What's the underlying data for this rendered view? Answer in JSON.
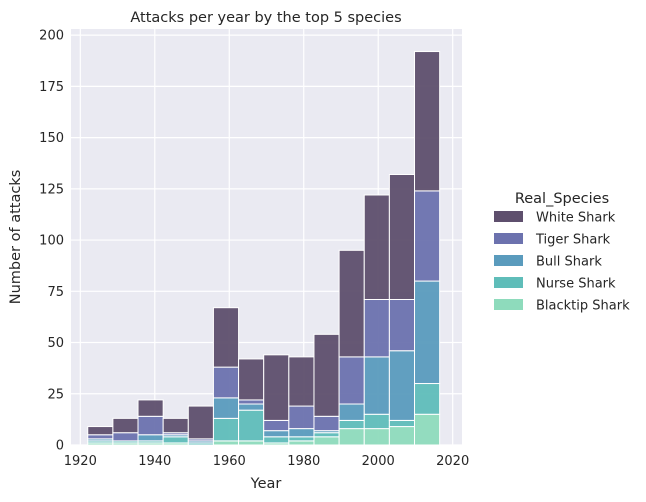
{
  "chart_data": {
    "type": "bar",
    "stacked": true,
    "title": "Attacks per year by the top 5 species",
    "xlabel": "Year",
    "ylabel": "Number of attacks",
    "xlim": [
      1917.5,
      2022.5
    ],
    "ylim": [
      0,
      203
    ],
    "xticks": [
      1920,
      1940,
      1960,
      1980,
      2000,
      2020
    ],
    "yticks": [
      0,
      25,
      50,
      75,
      100,
      125,
      150,
      175,
      200
    ],
    "grid": true,
    "legend": {
      "title": "Real_Species",
      "position": "right"
    },
    "bins": [
      [
        1922,
        1928.75
      ],
      [
        1928.75,
        1935.5
      ],
      [
        1935.5,
        1942.25
      ],
      [
        1942.25,
        1949
      ],
      [
        1949,
        1955.75
      ],
      [
        1955.75,
        1962.5
      ],
      [
        1962.5,
        1969.25
      ],
      [
        1969.25,
        1976
      ],
      [
        1976,
        1982.75
      ],
      [
        1982.75,
        1989.5
      ],
      [
        1989.5,
        1996.25
      ],
      [
        1996.25,
        2003
      ],
      [
        2003,
        2009.75
      ],
      [
        2009.75,
        2016.5
      ],
      [
        2016.5,
        2023.25
      ]
    ],
    "series": [
      {
        "name": "Blacktip Shark",
        "color": "#8edbbc",
        "values": [
          1,
          1,
          1,
          1,
          0,
          2,
          2,
          1,
          2,
          4,
          8,
          8,
          9,
          15,
          0
        ]
      },
      {
        "name": "Nurse Shark",
        "color": "#5fbdb9",
        "values": [
          1,
          1,
          1,
          3,
          1,
          11,
          15,
          3,
          2,
          2,
          4,
          7,
          3,
          15,
          0
        ]
      },
      {
        "name": "Bull Shark",
        "color": "#5a9bbd",
        "values": [
          1,
          0,
          3,
          1,
          1,
          10,
          3,
          3,
          4,
          1,
          8,
          28,
          34,
          50,
          0
        ]
      },
      {
        "name": "Tiger Shark",
        "color": "#6c72ae",
        "values": [
          2,
          4,
          9,
          1,
          1,
          15,
          2,
          5,
          11,
          7,
          23,
          28,
          25,
          44,
          0
        ]
      },
      {
        "name": "White Shark",
        "color": "#5e4f6d",
        "values": [
          4,
          7,
          8,
          7,
          16,
          29,
          20,
          32,
          24,
          40,
          52,
          51,
          61,
          68,
          0
        ]
      }
    ]
  }
}
